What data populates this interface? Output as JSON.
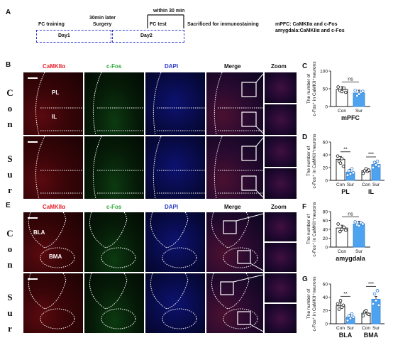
{
  "panel_letters": {
    "a": "A",
    "b": "B",
    "c": "C",
    "d": "D",
    "e": "E",
    "f": "F",
    "g": "G"
  },
  "timeline": {
    "fc_training": "FC training",
    "surgery_line1": "30min later",
    "surgery_line2": "Surgery",
    "within": "within 30 min",
    "fc_test": "FC test",
    "sacrificed": "Sacrificed for immunostaining",
    "mpfc_line": "mPFC: CaMKIIα and  c-Fos",
    "amygdala_line": "amygdala:CaMKIIα and  c-Fos",
    "day1": "Day1",
    "day2": "Day2"
  },
  "channels": {
    "camk": "CaMKIIα",
    "cfos": "c-Fos",
    "dapi": "DAPI",
    "merge": "Merge",
    "zoom": "Zoom"
  },
  "row_labels": {
    "con": "Con",
    "sur": "Sur"
  },
  "region_labels": {
    "pl": "PL",
    "il": "IL",
    "bla": "BLA",
    "bma": "BMA"
  },
  "colors": {
    "camk": "#e8222c",
    "cfos": "#2ea83a",
    "dapi": "#2a39c9",
    "con_bar": "#ffffff",
    "sur_bar": "#4da3f0"
  },
  "y_label_line1": "The number of",
  "y_label_line2_camk": "c-Fos⁺ in CaMKII⁺neurons",
  "chart_data": [
    {
      "id": "C",
      "type": "bar",
      "categories": [
        "Con",
        "Sur"
      ],
      "values": [
        48,
        38
      ],
      "ylim": [
        0,
        100
      ],
      "yticks": [
        0,
        50,
        100
      ],
      "xlabel": "mPFC",
      "significance": [
        "ns"
      ],
      "points": [
        [
          55,
          45,
          42,
          52,
          40
        ],
        [
          45,
          30,
          35,
          40,
          43
        ]
      ]
    },
    {
      "id": "D",
      "type": "bar",
      "categories": [
        "Con",
        "Sur",
        "Con",
        "Sur"
      ],
      "groups": [
        "PL",
        "IL"
      ],
      "values": [
        33,
        13,
        15,
        25
      ],
      "ylim": [
        0,
        60
      ],
      "yticks": [
        0,
        20,
        40,
        60
      ],
      "significance": [
        "**",
        "***"
      ],
      "points": [
        [
          38,
          30,
          27,
          34,
          22
        ],
        [
          8,
          15,
          10,
          18,
          12
        ],
        [
          11,
          15,
          18,
          14,
          16
        ],
        [
          20,
          28,
          24,
          30,
          22
        ]
      ]
    },
    {
      "id": "F",
      "type": "bar",
      "categories": [
        "Con",
        "Sur"
      ],
      "values": [
        43,
        52
      ],
      "ylim": [
        0,
        80
      ],
      "yticks": [
        0,
        20,
        40,
        60,
        80
      ],
      "xlabel": "amygdala",
      "significance": [
        "ns"
      ],
      "points": [
        [
          52,
          35,
          40,
          45,
          38
        ],
        [
          57,
          50,
          48,
          55,
          52
        ]
      ]
    },
    {
      "id": "G",
      "type": "bar",
      "categories": [
        "Con",
        "Sur",
        "Con",
        "Sur"
      ],
      "groups": [
        "BLA",
        "BMA"
      ],
      "values": [
        27,
        10,
        16,
        37
      ],
      "ylim": [
        0,
        60
      ],
      "yticks": [
        0,
        20,
        40,
        60
      ],
      "significance": [
        "**",
        "***"
      ],
      "points": [
        [
          30,
          22,
          35,
          25,
          28
        ],
        [
          5,
          12,
          8,
          15,
          10
        ],
        [
          12,
          18,
          20,
          15,
          14
        ],
        [
          30,
          45,
          35,
          50,
          28
        ]
      ]
    }
  ]
}
